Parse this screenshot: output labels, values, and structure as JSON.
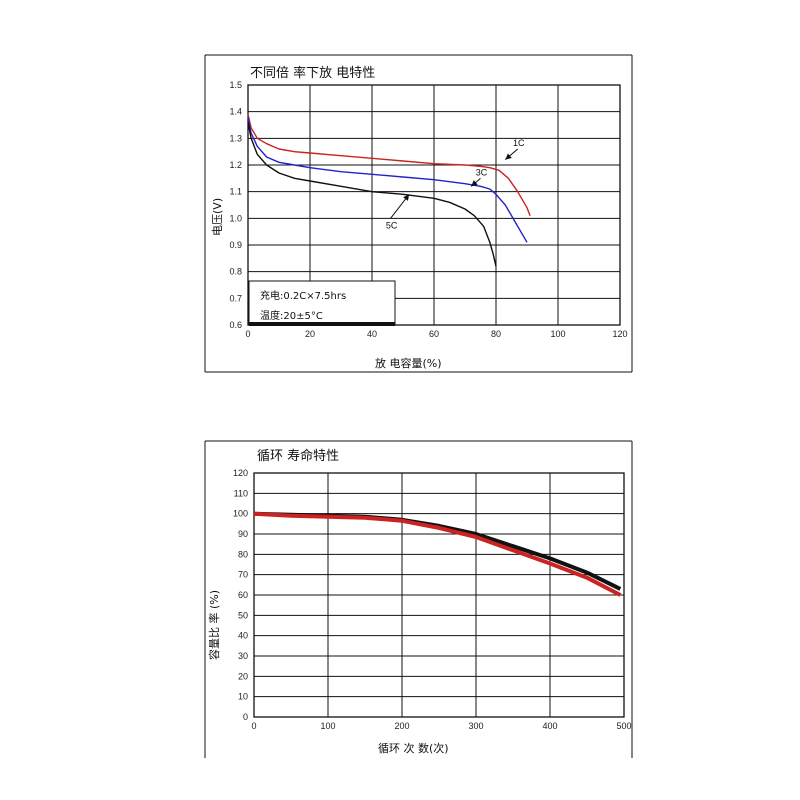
{
  "chart_data": [
    {
      "type": "line",
      "title": "不同倍 率下放 电特性",
      "xlabel": "放 电容量(%)",
      "ylabel": "电压(V)",
      "xlim": [
        0,
        120
      ],
      "ylim": [
        0.6,
        1.5
      ],
      "x_ticks": [
        "0",
        "20",
        "40",
        "60",
        "80",
        "100",
        "120"
      ],
      "y_ticks": [
        "0.6",
        "0.7",
        "0.8",
        "0.9",
        "1.0",
        "1.1",
        "1.2",
        "1.3",
        "1.4",
        "1.5"
      ],
      "grid": true,
      "note_lines": [
        "充电:0.2C×7.5hrs",
        "温度:20±5°C"
      ],
      "series": [
        {
          "name": "1C",
          "color": "#cc2222",
          "points": [
            [
              0,
              1.39
            ],
            [
              1,
              1.34
            ],
            [
              3,
              1.3
            ],
            [
              6,
              1.28
            ],
            [
              10,
              1.26
            ],
            [
              15,
              1.25
            ],
            [
              20,
              1.245
            ],
            [
              30,
              1.235
            ],
            [
              40,
              1.225
            ],
            [
              50,
              1.215
            ],
            [
              60,
              1.205
            ],
            [
              70,
              1.2
            ],
            [
              75,
              1.195
            ],
            [
              78,
              1.19
            ],
            [
              81,
              1.18
            ],
            [
              84,
              1.15
            ],
            [
              87,
              1.1
            ],
            [
              90,
              1.04
            ],
            [
              91,
              1.01
            ]
          ]
        },
        {
          "name": "3C",
          "color": "#2222cc",
          "points": [
            [
              0,
              1.38
            ],
            [
              1,
              1.32
            ],
            [
              3,
              1.27
            ],
            [
              6,
              1.23
            ],
            [
              10,
              1.21
            ],
            [
              15,
              1.2
            ],
            [
              20,
              1.19
            ],
            [
              30,
              1.175
            ],
            [
              40,
              1.165
            ],
            [
              50,
              1.155
            ],
            [
              60,
              1.145
            ],
            [
              70,
              1.13
            ],
            [
              75,
              1.12
            ],
            [
              78,
              1.11
            ],
            [
              80,
              1.09
            ],
            [
              83,
              1.05
            ],
            [
              86,
              0.99
            ],
            [
              88,
              0.95
            ],
            [
              90,
              0.91
            ]
          ]
        },
        {
          "name": "5C",
          "color": "#111111",
          "points": [
            [
              0,
              1.36
            ],
            [
              1,
              1.3
            ],
            [
              3,
              1.24
            ],
            [
              6,
              1.2
            ],
            [
              10,
              1.17
            ],
            [
              15,
              1.15
            ],
            [
              20,
              1.14
            ],
            [
              30,
              1.12
            ],
            [
              40,
              1.1
            ],
            [
              50,
              1.09
            ],
            [
              60,
              1.075
            ],
            [
              65,
              1.06
            ],
            [
              70,
              1.035
            ],
            [
              73,
              1.01
            ],
            [
              76,
              0.97
            ],
            [
              78,
              0.91
            ],
            [
              79,
              0.87
            ],
            [
              80,
              0.82
            ]
          ]
        }
      ],
      "annotations": [
        {
          "label": "3C",
          "from": [
            75,
            1.15
          ],
          "to": [
            72,
            1.12
          ]
        },
        {
          "label": "1C",
          "from": [
            87,
            1.26
          ],
          "to": [
            83,
            1.22
          ]
        },
        {
          "label": "5C",
          "from": [
            46,
            1.0
          ],
          "to": [
            52,
            1.09
          ]
        }
      ]
    },
    {
      "type": "line",
      "title": "循环 寿命特性",
      "xlabel": "循环 次 数(次)",
      "ylabel": "容量比 率 (%)",
      "xlim": [
        0,
        500
      ],
      "ylim": [
        0,
        120
      ],
      "x_ticks": [
        "0",
        "100",
        "200",
        "300",
        "400",
        "500"
      ],
      "y_ticks": [
        "0",
        "10",
        "20",
        "30",
        "40",
        "50",
        "60",
        "70",
        "80",
        "90",
        "100",
        "110",
        "120"
      ],
      "grid": true,
      "series": [
        {
          "color": "#111111",
          "points": [
            [
              0,
              100
            ],
            [
              50,
              99.5
            ],
            [
              100,
              99
            ],
            [
              150,
              98.5
            ],
            [
              200,
              97
            ],
            [
              250,
              94
            ],
            [
              300,
              90
            ],
            [
              350,
              84
            ],
            [
              400,
              78
            ],
            [
              450,
              71
            ],
            [
              495,
              63
            ]
          ]
        },
        {
          "color": "#cc2222",
          "points": [
            [
              0,
              100
            ],
            [
              50,
              99
            ],
            [
              100,
              98.5
            ],
            [
              150,
              98
            ],
            [
              200,
              96.5
            ],
            [
              250,
              93
            ],
            [
              300,
              88.5
            ],
            [
              350,
              82
            ],
            [
              400,
              75.5
            ],
            [
              450,
              68.5
            ],
            [
              495,
              60
            ]
          ]
        }
      ]
    }
  ]
}
